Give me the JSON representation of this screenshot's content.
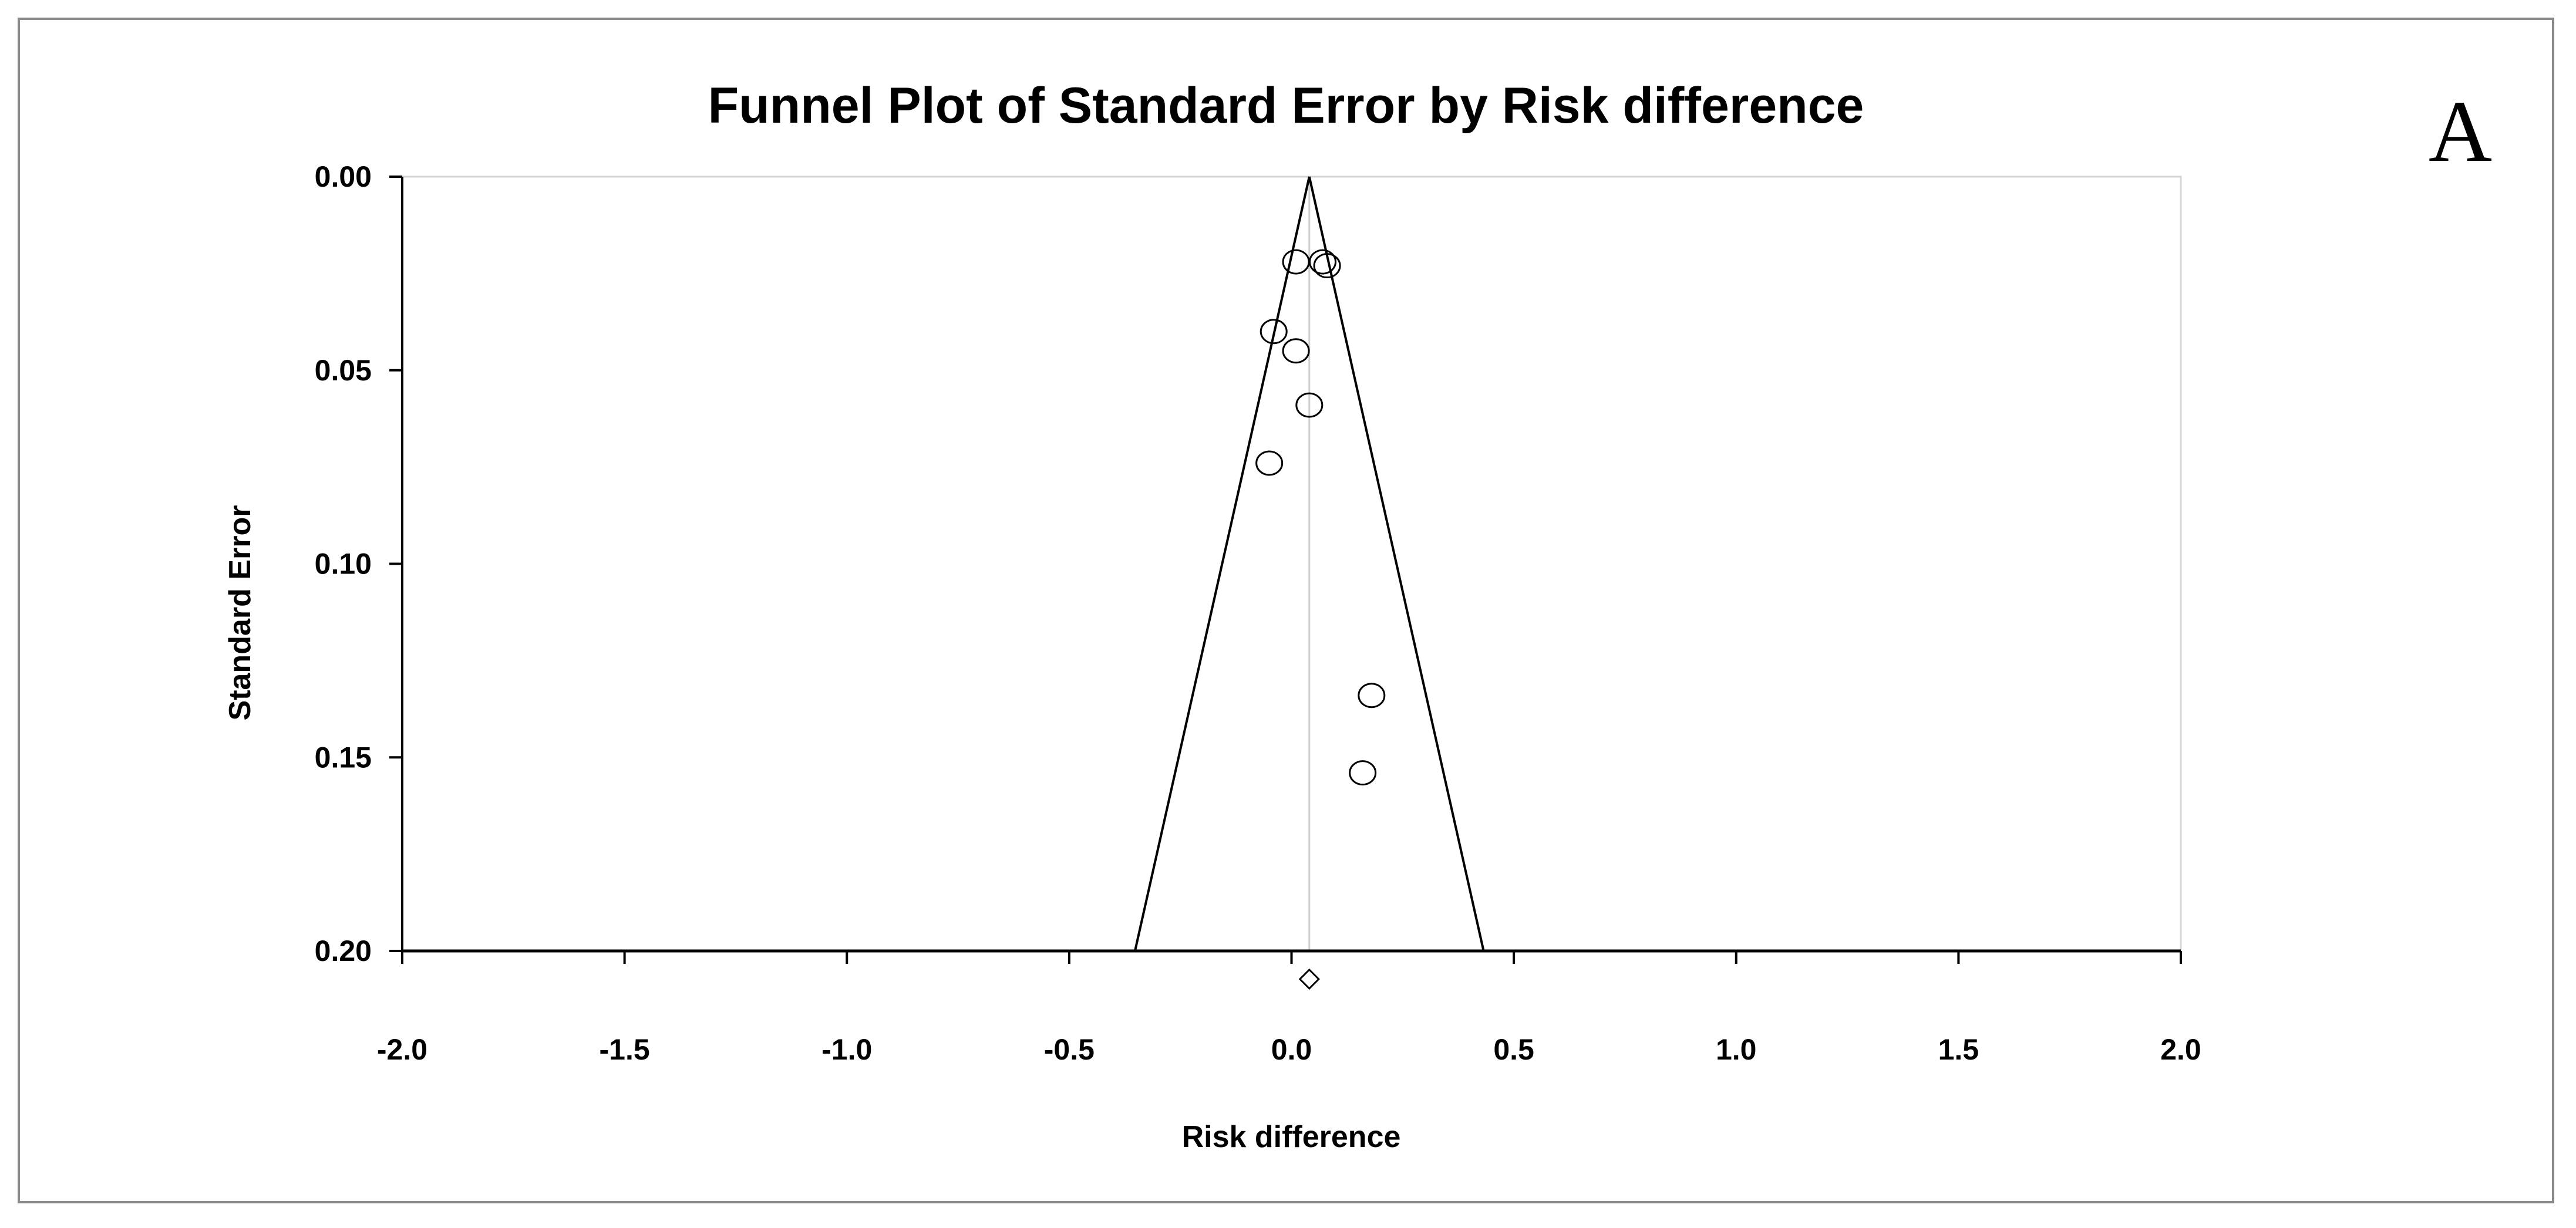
{
  "chart_data": {
    "type": "scatter",
    "title": "Funnel Plot of Standard Error by Risk difference",
    "panel_label": "A",
    "xlabel": "Risk difference",
    "ylabel": "Standard Error",
    "xlim": [
      -2.0,
      2.0
    ],
    "ylim": [
      0.0,
      0.2
    ],
    "y_inverted": true,
    "x_ticks": [
      "-2.0",
      "-1.5",
      "-1.0",
      "-0.5",
      "0.0",
      "0.5",
      "1.0",
      "1.5",
      "2.0"
    ],
    "y_ticks": [
      "0.00",
      "0.05",
      "0.10",
      "0.15",
      "0.20"
    ],
    "grid": false,
    "legend": "none",
    "summary_effect": 0.04,
    "funnel_se_max": 0.2,
    "funnel_multiplier": 1.96,
    "points": [
      {
        "x": 0.01,
        "y": 0.022
      },
      {
        "x": 0.07,
        "y": 0.022
      },
      {
        "x": 0.08,
        "y": 0.023
      },
      {
        "x": -0.04,
        "y": 0.04
      },
      {
        "x": 0.01,
        "y": 0.045
      },
      {
        "x": 0.04,
        "y": 0.059
      },
      {
        "x": -0.05,
        "y": 0.074
      },
      {
        "x": 0.18,
        "y": 0.134
      },
      {
        "x": 0.16,
        "y": 0.154
      }
    ],
    "summary_marker": {
      "x": 0.04,
      "shape": "diamond"
    },
    "colors": {
      "axis": "#000000",
      "marker": "#000000",
      "frame": "#8a8a8a",
      "center_line": "#cfcfcf"
    }
  }
}
